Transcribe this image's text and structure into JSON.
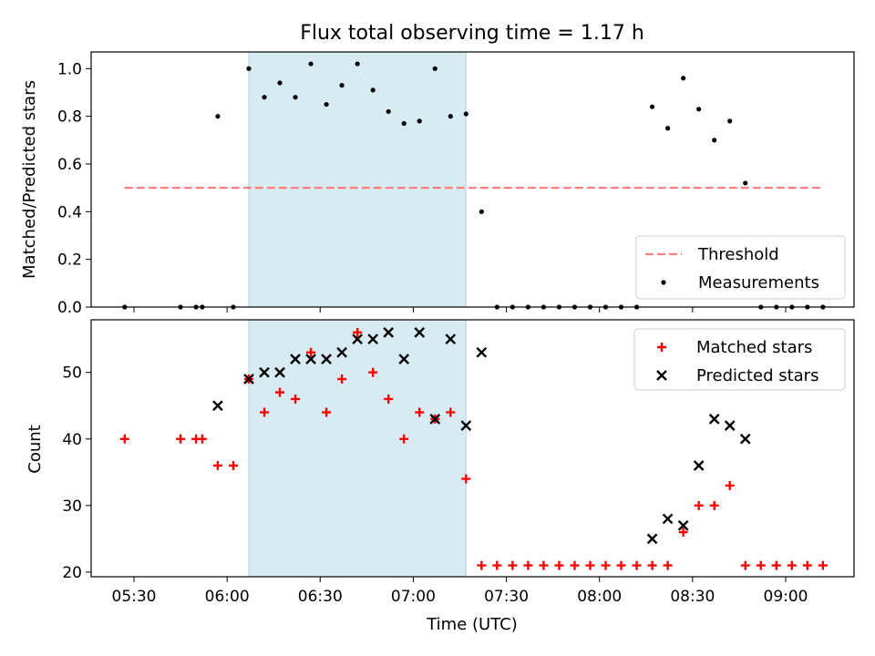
{
  "chart_data": [
    {
      "type": "scatter",
      "title": "Flux total observing time = 1.17 h",
      "xlabel": "",
      "ylabel": "Matched/Predicted stars",
      "ylim": [
        0,
        1.07
      ],
      "yticks": [
        "0.0",
        "0.2",
        "0.4",
        "0.6",
        "0.8",
        "1.0"
      ],
      "shaded_interval": [
        "06:07",
        "07:17"
      ],
      "threshold": {
        "name": "Threshold",
        "y": 0.5,
        "x_start": "05:27",
        "x_end": "09:12",
        "color": "#ff7f7f"
      },
      "series": [
        {
          "name": "Measurements",
          "marker": "dot",
          "color": "#000000",
          "x": [
            "05:27",
            "05:45",
            "05:50",
            "05:52",
            "05:57",
            "06:02",
            "06:07",
            "06:12",
            "06:17",
            "06:22",
            "06:27",
            "06:32",
            "06:37",
            "06:42",
            "06:47",
            "06:52",
            "06:57",
            "07:02",
            "07:07",
            "07:12",
            "07:17",
            "07:22",
            "07:27",
            "07:32",
            "07:37",
            "07:42",
            "07:47",
            "07:52",
            "07:57",
            "08:02",
            "08:07",
            "08:12",
            "08:17",
            "08:22",
            "08:27",
            "08:32",
            "08:37",
            "08:42",
            "08:47",
            "08:52",
            "08:57",
            "09:02",
            "09:07",
            "09:12"
          ],
          "y": [
            0,
            0,
            0,
            0,
            0.8,
            0,
            1.0,
            0.88,
            0.94,
            0.88,
            1.02,
            0.85,
            0.93,
            1.02,
            0.91,
            0.82,
            0.77,
            0.78,
            1.0,
            0.8,
            0.81,
            0.4,
            0,
            0,
            0,
            0,
            0,
            0,
            0,
            0,
            0,
            0,
            0.84,
            0.75,
            0.96,
            0.83,
            0.7,
            0.78,
            0.52,
            0,
            0,
            0,
            0,
            0
          ]
        }
      ],
      "legend": {
        "location": "lower-right",
        "entries": [
          "Threshold",
          "Measurements"
        ]
      }
    },
    {
      "type": "scatter",
      "title": "",
      "xlabel": "Time (UTC)",
      "ylabel": "Count",
      "ylim": [
        19.3,
        57.9
      ],
      "yticks": [
        "20",
        "30",
        "40",
        "50"
      ],
      "xticks": [
        "05:30",
        "06:00",
        "06:30",
        "07:00",
        "07:30",
        "08:00",
        "08:30",
        "09:00"
      ],
      "shaded_interval": [
        "06:07",
        "07:17"
      ],
      "series": [
        {
          "name": "Matched stars",
          "marker": "plus",
          "color": "#ff0000",
          "x": [
            "05:27",
            "05:45",
            "05:50",
            "05:52",
            "05:57",
            "06:02",
            "06:07",
            "06:12",
            "06:17",
            "06:22",
            "06:27",
            "06:32",
            "06:37",
            "06:42",
            "06:47",
            "06:52",
            "06:57",
            "07:02",
            "07:07",
            "07:12",
            "07:17",
            "07:22",
            "07:27",
            "07:32",
            "07:37",
            "07:42",
            "07:47",
            "07:52",
            "07:57",
            "08:02",
            "08:07",
            "08:12",
            "08:17",
            "08:22",
            "08:27",
            "08:32",
            "08:37",
            "08:42",
            "08:47",
            "08:52",
            "08:57",
            "09:02",
            "09:07",
            "09:12"
          ],
          "y": [
            40,
            40,
            40,
            40,
            36,
            36,
            49,
            44,
            47,
            46,
            53,
            44,
            49,
            56,
            50,
            46,
            40,
            44,
            43,
            44,
            34,
            21,
            21,
            21,
            21,
            21,
            21,
            21,
            21,
            21,
            21,
            21,
            21,
            21,
            26,
            30,
            30,
            33,
            21,
            21,
            21,
            21,
            21,
            21
          ]
        },
        {
          "name": "Predicted stars",
          "marker": "x",
          "color": "#000000",
          "x": [
            "05:57",
            "06:07",
            "06:12",
            "06:17",
            "06:22",
            "06:27",
            "06:32",
            "06:37",
            "06:42",
            "06:47",
            "06:52",
            "06:57",
            "07:02",
            "07:07",
            "07:12",
            "07:17",
            "07:22",
            "08:17",
            "08:22",
            "08:27",
            "08:32",
            "08:37",
            "08:42",
            "08:47"
          ],
          "y": [
            45,
            49,
            50,
            50,
            52,
            52,
            52,
            53,
            55,
            55,
            56,
            52,
            56,
            43,
            55,
            42,
            53,
            25,
            28,
            27,
            36,
            43,
            42,
            40
          ]
        }
      ],
      "legend": {
        "location": "upper-right",
        "entries": [
          "Matched stars",
          "Predicted stars"
        ]
      }
    }
  ]
}
